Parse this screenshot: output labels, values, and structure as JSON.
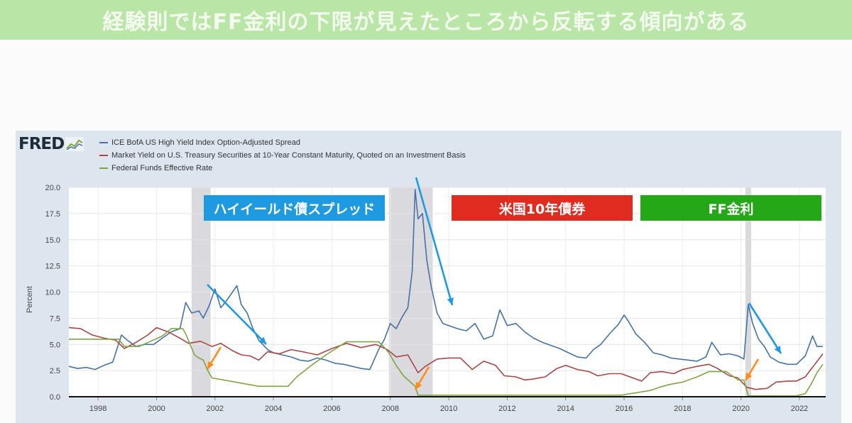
{
  "banner": {
    "title": "経験則ではFF金利の下限が見えたところから反転する傾向がある"
  },
  "fred": {
    "logo_text": "FRED",
    "legend": [
      {
        "label": "ICE BofA US High Yield Index Option-Adjusted Spread",
        "color": "#4572a7"
      },
      {
        "label": "Market Yield on U.S. Treasury Securities at 10-Year Constant Maturity, Quoted on an Investment Basis",
        "color": "#aa4643"
      },
      {
        "label": "Federal Funds Effective Rate",
        "color": "#7ea642"
      }
    ],
    "ylabel": "Percent"
  },
  "callouts": [
    {
      "text": "ハイイールド債スプレッド",
      "color": "#1e9ae0"
    },
    {
      "text": "米国10年債券",
      "color": "#e02b20"
    },
    {
      "text": "FF金利",
      "color": "#25a818"
    }
  ],
  "chart_data": {
    "type": "line",
    "ylabel": "Percent",
    "ylim": [
      0,
      20
    ],
    "xlim": [
      1997,
      2022.9
    ],
    "yticks": [
      "0.0",
      "2.5",
      "5.0",
      "7.5",
      "10.0",
      "12.5",
      "15.0",
      "17.5",
      "20.0"
    ],
    "xticks": [
      "1998",
      "2000",
      "2002",
      "2004",
      "2006",
      "2008",
      "2010",
      "2012",
      "2014",
      "2016",
      "2018",
      "2020",
      "2022"
    ],
    "recessions": [
      [
        2001.2,
        2001.85
      ],
      [
        2007.95,
        2009.45
      ],
      [
        2020.15,
        2020.35
      ]
    ],
    "grid": true,
    "series": [
      {
        "name": "ICE BofA US High Yield Index Option-Adjusted Spread",
        "color": "#4572a7",
        "x": [
          1997.0,
          1997.3,
          1997.6,
          1997.9,
          1998.2,
          1998.5,
          1998.8,
          1999.0,
          1999.3,
          1999.6,
          1999.9,
          2000.2,
          2000.5,
          2000.8,
          2001.0,
          2001.2,
          2001.45,
          2001.6,
          2001.8,
          2002.0,
          2002.2,
          2002.4,
          2002.6,
          2002.75,
          2002.9,
          2003.1,
          2003.3,
          2003.5,
          2003.8,
          2004.0,
          2004.3,
          2004.6,
          2004.9,
          2005.2,
          2005.5,
          2005.8,
          2006.1,
          2006.4,
          2006.7,
          2007.0,
          2007.3,
          2007.6,
          2007.8,
          2008.0,
          2008.2,
          2008.4,
          2008.6,
          2008.75,
          2008.85,
          2008.95,
          2009.1,
          2009.25,
          2009.4,
          2009.6,
          2009.8,
          2010.0,
          2010.3,
          2010.6,
          2010.9,
          2011.2,
          2011.5,
          2011.75,
          2012.0,
          2012.3,
          2012.6,
          2012.9,
          2013.2,
          2013.5,
          2013.8,
          2014.1,
          2014.4,
          2014.7,
          2014.95,
          2015.2,
          2015.5,
          2015.8,
          2016.0,
          2016.15,
          2016.4,
          2016.7,
          2017.0,
          2017.3,
          2017.6,
          2017.9,
          2018.2,
          2018.5,
          2018.8,
          2019.0,
          2019.3,
          2019.6,
          2019.9,
          2020.1,
          2020.25,
          2020.4,
          2020.6,
          2020.8,
          2021.0,
          2021.3,
          2021.6,
          2021.9,
          2022.2,
          2022.45,
          2022.6,
          2022.8
        ],
        "y": [
          2.9,
          2.7,
          2.8,
          2.6,
          3.0,
          3.3,
          5.9,
          5.4,
          4.8,
          5.0,
          5.0,
          5.6,
          6.2,
          6.5,
          9.0,
          8.0,
          8.2,
          7.5,
          8.7,
          10.3,
          8.5,
          9.2,
          10.0,
          10.6,
          8.8,
          8.0,
          6.5,
          5.4,
          4.5,
          4.2,
          4.0,
          3.8,
          3.5,
          3.4,
          3.7,
          3.5,
          3.2,
          3.1,
          2.9,
          2.7,
          2.6,
          4.5,
          5.5,
          7.0,
          6.5,
          7.6,
          8.5,
          12.0,
          19.8,
          17.0,
          17.5,
          13.0,
          10.5,
          8.0,
          7.0,
          6.8,
          6.5,
          6.3,
          7.0,
          5.5,
          5.8,
          8.3,
          6.8,
          7.0,
          6.2,
          5.6,
          5.2,
          4.9,
          4.6,
          4.2,
          3.8,
          3.7,
          4.5,
          5.0,
          6.0,
          6.9,
          7.8,
          7.2,
          6.0,
          5.2,
          4.2,
          4.0,
          3.7,
          3.6,
          3.5,
          3.4,
          3.8,
          5.2,
          4.0,
          4.1,
          3.9,
          3.6,
          8.8,
          7.0,
          5.5,
          4.8,
          3.8,
          3.3,
          3.1,
          3.1,
          3.9,
          5.8,
          4.8,
          4.8
        ]
      },
      {
        "name": "Market Yield on U.S. Treasury Securities at 10-Year Constant Maturity, Quoted on an Investment Basis",
        "color": "#aa4643",
        "x": [
          1997.0,
          1997.4,
          1997.8,
          1998.2,
          1998.6,
          1998.9,
          1999.3,
          1999.7,
          2000.0,
          2000.4,
          2000.8,
          2001.1,
          2001.5,
          2001.9,
          2002.2,
          2002.6,
          2002.9,
          2003.2,
          2003.5,
          2003.8,
          2004.2,
          2004.6,
          2005.0,
          2005.5,
          2006.0,
          2006.5,
          2007.0,
          2007.5,
          2007.9,
          2008.2,
          2008.6,
          2008.95,
          2009.2,
          2009.6,
          2010.0,
          2010.4,
          2010.8,
          2011.2,
          2011.6,
          2011.9,
          2012.3,
          2012.6,
          2012.9,
          2013.3,
          2013.7,
          2014.0,
          2014.4,
          2014.8,
          2015.1,
          2015.5,
          2015.9,
          2016.3,
          2016.6,
          2016.9,
          2017.3,
          2017.7,
          2018.0,
          2018.5,
          2018.9,
          2019.2,
          2019.6,
          2019.9,
          2020.2,
          2020.5,
          2020.9,
          2021.2,
          2021.6,
          2021.9,
          2022.2,
          2022.5,
          2022.8
        ],
        "y": [
          6.6,
          6.5,
          5.9,
          5.6,
          5.4,
          4.6,
          5.2,
          5.9,
          6.6,
          6.2,
          5.6,
          5.1,
          5.3,
          4.8,
          5.1,
          4.4,
          4.0,
          3.9,
          3.5,
          4.3,
          4.1,
          4.5,
          4.3,
          4.0,
          4.6,
          5.1,
          4.7,
          5.0,
          4.5,
          3.8,
          4.0,
          2.3,
          2.9,
          3.6,
          3.7,
          3.7,
          2.6,
          3.4,
          3.0,
          2.0,
          1.9,
          1.6,
          1.7,
          1.9,
          2.7,
          3.0,
          2.6,
          2.4,
          2.0,
          2.2,
          2.2,
          1.8,
          1.5,
          2.3,
          2.4,
          2.2,
          2.6,
          2.9,
          3.1,
          2.7,
          2.0,
          1.8,
          0.9,
          0.7,
          0.8,
          1.4,
          1.5,
          1.5,
          1.9,
          3.0,
          4.1
        ]
      },
      {
        "name": "Federal Funds Effective Rate",
        "color": "#7ea642",
        "x": [
          1997.0,
          1998.7,
          1998.9,
          1999.4,
          1999.8,
          2000.2,
          2000.5,
          2000.9,
          2001.0,
          2001.15,
          2001.3,
          2001.45,
          2001.6,
          2001.75,
          2001.9,
          2002.9,
          2003.5,
          2004.5,
          2004.8,
          2005.3,
          2005.8,
          2006.5,
          2007.6,
          2007.8,
          2007.95,
          2008.2,
          2008.45,
          2008.85,
          2008.95,
          2015.9,
          2016.9,
          2017.2,
          2017.6,
          2018.0,
          2018.5,
          2018.9,
          2019.5,
          2019.7,
          2019.9,
          2020.1,
          2020.25,
          2021.9,
          2022.2,
          2022.4,
          2022.6,
          2022.8
        ],
        "y": [
          5.5,
          5.5,
          4.8,
          4.8,
          5.3,
          5.8,
          6.5,
          6.5,
          6.0,
          5.0,
          4.0,
          3.7,
          3.5,
          2.5,
          1.8,
          1.3,
          1.0,
          1.0,
          1.9,
          3.0,
          4.0,
          5.25,
          5.25,
          4.7,
          4.2,
          3.0,
          2.0,
          1.0,
          0.15,
          0.15,
          0.6,
          0.9,
          1.2,
          1.4,
          1.9,
          2.4,
          2.4,
          2.0,
          1.6,
          1.6,
          0.08,
          0.08,
          0.3,
          1.2,
          2.3,
          3.1
        ]
      }
    ]
  }
}
